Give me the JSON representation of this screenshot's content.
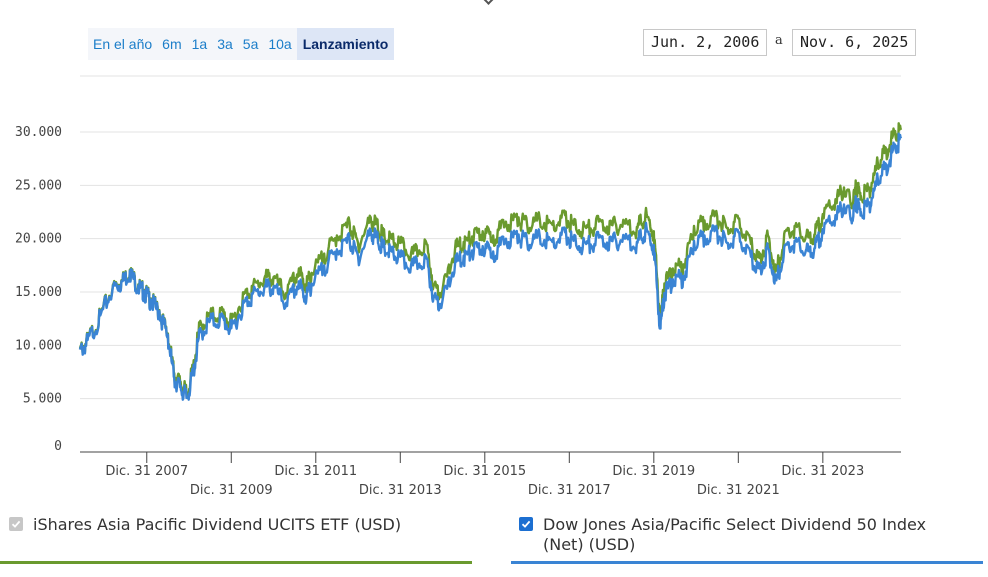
{
  "range_buttons": [
    "En el año",
    "6m",
    "1a",
    "3a",
    "5a",
    "10a",
    "Lanzamiento"
  ],
  "active_range": "Lanzamiento",
  "date_from": "Jun. 2, 2006",
  "date_separator": "a",
  "date_to": "Nov. 6, 2025",
  "colors": {
    "etf": "#3a84d4",
    "index": "#6a9a2e",
    "grid": "#e3e3e3",
    "axis": "#444444"
  },
  "chart_data": {
    "type": "line",
    "title": "",
    "xlabel": "",
    "ylabel": "",
    "x_range": [
      2006.42,
      2025.85
    ],
    "ylim": [
      0,
      30000
    ],
    "y_ticks": [
      0,
      5000,
      10000,
      15000,
      20000,
      25000,
      30000
    ],
    "y_tick_labels": [
      "0",
      "5.000",
      "10.000",
      "15.000",
      "20.000",
      "25.000",
      "30.000"
    ],
    "x_ticks": [
      2008.0,
      2010.0,
      2012.0,
      2014.0,
      2016.0,
      2018.0,
      2020.0,
      2022.0,
      2024.0
    ],
    "x_tick_labels": [
      "Dic. 31 2007",
      "Dic. 31 2009",
      "Dic. 31 2011",
      "Dic. 31 2013",
      "Dic. 31 2015",
      "Dic. 31 2017",
      "Dic. 31 2019",
      "Dic. 31 2021",
      "Dic. 31 2023"
    ],
    "grid": true,
    "legend_position": "bottom",
    "series": [
      {
        "name": "iShares Asia Pacific Dividend UCITS ETF (USD)",
        "checked": true,
        "x": [
          2006.42,
          2006.6,
          2006.9,
          2007.2,
          2007.4,
          2007.6,
          2007.8,
          2007.95,
          2008.1,
          2008.3,
          2008.5,
          2008.65,
          2008.8,
          2008.95,
          2009.1,
          2009.25,
          2009.5,
          2009.8,
          2010.0,
          2010.3,
          2010.5,
          2010.8,
          2011.0,
          2011.3,
          2011.6,
          2011.75,
          2011.9,
          2012.2,
          2012.5,
          2012.8,
          2013.0,
          2013.3,
          2013.45,
          2013.6,
          2013.8,
          2014.0,
          2014.3,
          2014.6,
          2014.8,
          2015.0,
          2015.3,
          2015.5,
          2015.7,
          2015.95,
          2016.2,
          2016.5,
          2016.8,
          2017.0,
          2017.3,
          2017.6,
          2017.9,
          2018.1,
          2018.4,
          2018.7,
          2019.0,
          2019.3,
          2019.6,
          2019.8,
          2020.0,
          2020.15,
          2020.25,
          2020.45,
          2020.7,
          2020.95,
          2021.2,
          2021.5,
          2021.75,
          2022.0,
          2022.3,
          2022.5,
          2022.7,
          2022.9,
          2023.1,
          2023.35,
          2023.6,
          2023.8,
          2024.0,
          2024.3,
          2024.5,
          2024.7,
          2024.8,
          2024.9,
          2025.1,
          2025.3,
          2025.5,
          2025.7,
          2025.85
        ],
        "values": [
          9600,
          10500,
          12800,
          15600,
          16000,
          17000,
          15600,
          15100,
          14300,
          13200,
          11000,
          7000,
          6200,
          5200,
          7600,
          11200,
          12400,
          12600,
          11600,
          14000,
          14800,
          15600,
          15500,
          14000,
          16000,
          14600,
          15800,
          17500,
          19000,
          20000,
          18400,
          20800,
          20200,
          19200,
          18800,
          18300,
          17500,
          18400,
          14600,
          14200,
          17800,
          18400,
          18900,
          19300,
          18800,
          20000,
          20400,
          19800,
          20300,
          19700,
          20600,
          19800,
          19500,
          20100,
          19800,
          20200,
          19700,
          20900,
          19400,
          11800,
          14900,
          16200,
          16500,
          19800,
          20300,
          20700,
          19600,
          20600,
          18300,
          17200,
          19100,
          16100,
          19400,
          19800,
          18900,
          19100,
          20900,
          22200,
          23200,
          21900,
          23700,
          22500,
          23400,
          25600,
          26900,
          28700,
          29400
        ]
      },
      {
        "name": "Dow Jones Asia/Pacific Select Dividend 50 Index (Net) (USD)",
        "checked": true,
        "x": [
          2006.42,
          2006.6,
          2006.9,
          2007.2,
          2007.4,
          2007.6,
          2007.8,
          2007.95,
          2008.1,
          2008.3,
          2008.5,
          2008.65,
          2008.8,
          2008.95,
          2009.1,
          2009.25,
          2009.5,
          2009.8,
          2010.0,
          2010.3,
          2010.5,
          2010.8,
          2011.0,
          2011.3,
          2011.6,
          2011.75,
          2011.9,
          2012.2,
          2012.5,
          2012.8,
          2013.0,
          2013.3,
          2013.45,
          2013.6,
          2013.8,
          2014.0,
          2014.3,
          2014.6,
          2014.8,
          2015.0,
          2015.3,
          2015.5,
          2015.7,
          2015.95,
          2016.2,
          2016.5,
          2016.8,
          2017.0,
          2017.3,
          2017.6,
          2017.9,
          2018.1,
          2018.4,
          2018.7,
          2019.0,
          2019.3,
          2019.6,
          2019.8,
          2020.0,
          2020.15,
          2020.25,
          2020.45,
          2020.7,
          2020.95,
          2021.2,
          2021.5,
          2021.75,
          2022.0,
          2022.3,
          2022.5,
          2022.7,
          2022.9,
          2023.1,
          2023.35,
          2023.6,
          2023.8,
          2024.0,
          2024.3,
          2024.5,
          2024.7,
          2024.8,
          2024.9,
          2025.1,
          2025.3,
          2025.5,
          2025.7,
          2025.85
        ],
        "values": [
          9700,
          10600,
          12900,
          15700,
          16100,
          17100,
          15700,
          15200,
          14400,
          13300,
          11100,
          7400,
          6600,
          5600,
          8000,
          11900,
          12900,
          13200,
          12200,
          14800,
          15500,
          16500,
          16400,
          14900,
          17200,
          15700,
          16800,
          18600,
          20300,
          21500,
          19600,
          22000,
          21400,
          20300,
          20000,
          19600,
          18600,
          19800,
          15700,
          15200,
          19200,
          19700,
          20200,
          20700,
          20300,
          21600,
          22000,
          21400,
          21900,
          21300,
          22200,
          21300,
          21000,
          21600,
          21300,
          21600,
          21100,
          22300,
          20700,
          12500,
          15800,
          17200,
          17600,
          21200,
          21700,
          22100,
          21000,
          21900,
          19500,
          18200,
          20300,
          17000,
          20700,
          21200,
          20200,
          20400,
          22300,
          23700,
          24800,
          23300,
          25200,
          24000,
          24800,
          27100,
          28400,
          30000,
          30200
        ]
      }
    ]
  }
}
